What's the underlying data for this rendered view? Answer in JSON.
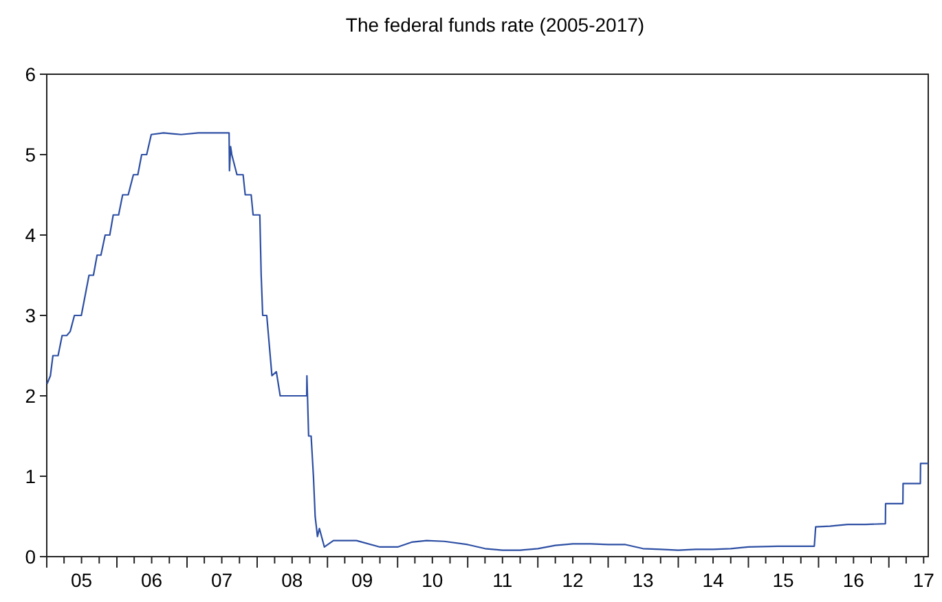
{
  "chart_data": {
    "type": "line",
    "title": "The federal funds rate (2005-2017)",
    "xlim": [
      "2005-01-01",
      "2017-07-25"
    ],
    "xticks": [
      {
        "value": "2005-07-01",
        "label": "05"
      },
      {
        "value": "2006-07-01",
        "label": "06"
      },
      {
        "value": "2007-07-01",
        "label": "07"
      },
      {
        "value": "2008-07-01",
        "label": "08"
      },
      {
        "value": "2009-07-01",
        "label": "09"
      },
      {
        "value": "2010-07-01",
        "label": "10"
      },
      {
        "value": "2011-07-01",
        "label": "11"
      },
      {
        "value": "2012-07-01",
        "label": "12"
      },
      {
        "value": "2013-07-01",
        "label": "13"
      },
      {
        "value": "2014-07-01",
        "label": "14"
      },
      {
        "value": "2015-07-01",
        "label": "15"
      },
      {
        "value": "2016-07-01",
        "label": "16"
      },
      {
        "value": "2017-07-01",
        "label": "17"
      }
    ],
    "ylim": [
      0,
      6
    ],
    "yticks": [
      0,
      1,
      2,
      3,
      4,
      5,
      6
    ],
    "grid": false,
    "series": [
      {
        "color": "#2c4ea3",
        "x": [
          "2005-01-03",
          "2005-01-20",
          "2005-02-02",
          "2005-03-01",
          "2005-03-22",
          "2005-04-15",
          "2005-05-03",
          "2005-05-25",
          "2005-06-30",
          "2005-07-20",
          "2005-08-09",
          "2005-09-01",
          "2005-09-20",
          "2005-10-10",
          "2005-11-01",
          "2005-11-25",
          "2005-12-13",
          "2006-01-10",
          "2006-01-31",
          "2006-03-01",
          "2006-03-28",
          "2006-04-20",
          "2006-05-10",
          "2006-06-05",
          "2006-06-29",
          "2006-09-01",
          "2006-12-01",
          "2007-03-01",
          "2007-06-01",
          "2007-08-08",
          "2007-08-10",
          "2007-08-16",
          "2007-08-22",
          "2007-09-18",
          "2007-10-20",
          "2007-10-31",
          "2007-12-01",
          "2007-12-11",
          "2008-01-15",
          "2008-01-22",
          "2008-01-30",
          "2008-02-20",
          "2008-03-18",
          "2008-04-10",
          "2008-04-30",
          "2008-06-01",
          "2008-08-01",
          "2008-09-15",
          "2008-09-16",
          "2008-09-25",
          "2008-10-08",
          "2008-10-20",
          "2008-10-29",
          "2008-11-10",
          "2008-11-20",
          "2008-12-16",
          "2009-02-01",
          "2009-06-01",
          "2009-10-01",
          "2010-01-01",
          "2010-03-15",
          "2010-06-01",
          "2010-09-01",
          "2011-01-01",
          "2011-04-01",
          "2011-07-01",
          "2011-10-01",
          "2012-01-01",
          "2012-04-01",
          "2012-07-01",
          "2012-10-01",
          "2013-01-01",
          "2013-04-01",
          "2013-07-01",
          "2013-10-01",
          "2014-01-01",
          "2014-04-01",
          "2014-07-01",
          "2014-10-01",
          "2015-01-01",
          "2015-06-01",
          "2015-12-10",
          "2015-12-17",
          "2016-03-01",
          "2016-06-01",
          "2016-09-01",
          "2016-12-14",
          "2016-12-15",
          "2017-03-15",
          "2017-03-16",
          "2017-04-15",
          "2017-06-14",
          "2017-06-15",
          "2017-07-25"
        ],
        "values": [
          2.15,
          2.25,
          2.5,
          2.5,
          2.75,
          2.75,
          2.8,
          3.0,
          3.0,
          3.25,
          3.5,
          3.5,
          3.75,
          3.75,
          4.0,
          4.0,
          4.25,
          4.25,
          4.5,
          4.5,
          4.75,
          4.75,
          5.0,
          5.0,
          5.25,
          5.27,
          5.25,
          5.27,
          5.27,
          5.27,
          4.8,
          5.1,
          5.0,
          4.75,
          4.75,
          4.5,
          4.5,
          4.25,
          4.25,
          3.5,
          3.0,
          3.0,
          2.25,
          2.3,
          2.0,
          2.0,
          2.0,
          2.0,
          2.25,
          1.5,
          1.5,
          1.0,
          0.5,
          0.25,
          0.35,
          0.12,
          0.2,
          0.2,
          0.12,
          0.12,
          0.18,
          0.2,
          0.19,
          0.15,
          0.1,
          0.08,
          0.08,
          0.1,
          0.14,
          0.16,
          0.16,
          0.15,
          0.15,
          0.1,
          0.09,
          0.08,
          0.09,
          0.09,
          0.1,
          0.12,
          0.13,
          0.13,
          0.37,
          0.38,
          0.4,
          0.4,
          0.41,
          0.66,
          0.66,
          0.91,
          0.91,
          0.91,
          1.16,
          1.16
        ]
      }
    ]
  }
}
